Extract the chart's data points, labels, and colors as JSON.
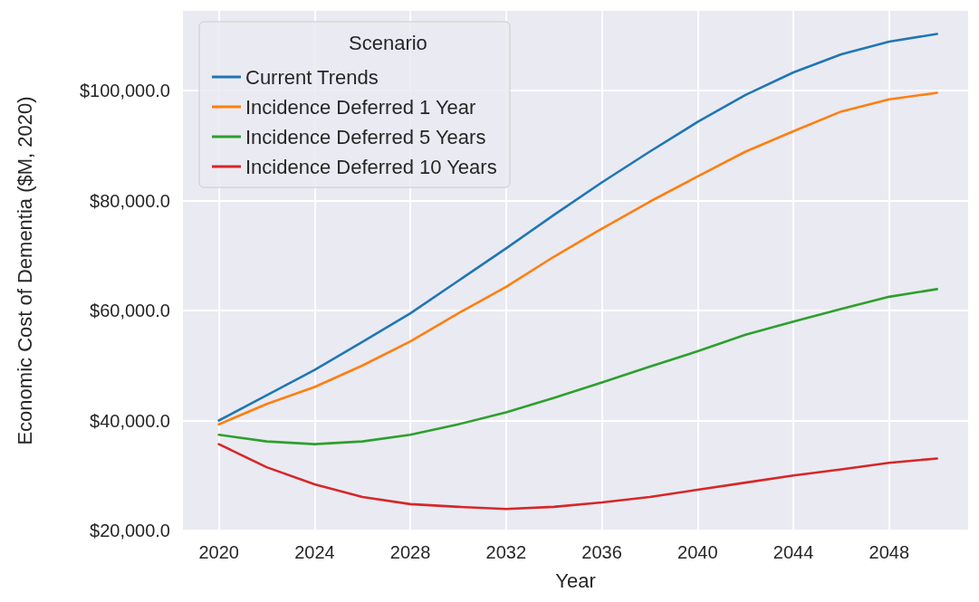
{
  "chart_data": {
    "type": "line",
    "xlabel": "Year",
    "ylabel": "Economic Cost of Dementia ($M, 2020)",
    "legend_title": "Scenario",
    "legend": "top left",
    "grid": true,
    "marker": "none",
    "line_style": "solid",
    "x": [
      2020,
      2022,
      2024,
      2026,
      2028,
      2030,
      2032,
      2034,
      2036,
      2038,
      2040,
      2042,
      2044,
      2046,
      2048,
      2050
    ],
    "xlim": [
      2018.5,
      2051.3
    ],
    "xticks": [
      2020,
      2024,
      2028,
      2032,
      2036,
      2040,
      2044,
      2048
    ],
    "ylim": [
      20000,
      114500
    ],
    "yticks": [
      {
        "value": 20000,
        "label": "$20,000.0"
      },
      {
        "value": 40000,
        "label": "$40,000.0"
      },
      {
        "value": 60000,
        "label": "$60,000.0"
      },
      {
        "value": 80000,
        "label": "$80,000.0"
      },
      {
        "value": 100000,
        "label": "$100,000.0"
      }
    ],
    "series": [
      {
        "name": "Current Trends",
        "color": "#1f77b4",
        "values": [
          40000,
          44600,
          49200,
          54300,
          59500,
          65400,
          71300,
          77400,
          83300,
          88900,
          94300,
          99200,
          103300,
          106600,
          108900,
          110300
        ]
      },
      {
        "name": "Incidence Deferred 1 Year",
        "color": "#ff7f0e",
        "values": [
          39300,
          43000,
          46100,
          50000,
          54400,
          59500,
          64300,
          69800,
          74900,
          79800,
          84400,
          88900,
          92600,
          96200,
          98400,
          99600
        ]
      },
      {
        "name": "Incidence Deferred 5 Years",
        "color": "#2ca02c",
        "values": [
          37400,
          36200,
          35700,
          36200,
          37400,
          39300,
          41500,
          44100,
          46900,
          49800,
          52600,
          55600,
          58000,
          60300,
          62500,
          63900
        ]
      },
      {
        "name": "Incidence Deferred 10 Years",
        "color": "#d62728",
        "values": [
          35700,
          31500,
          28400,
          26100,
          24800,
          24300,
          23900,
          24300,
          25100,
          26100,
          27400,
          28700,
          30000,
          31100,
          32300,
          33100
        ]
      }
    ]
  }
}
